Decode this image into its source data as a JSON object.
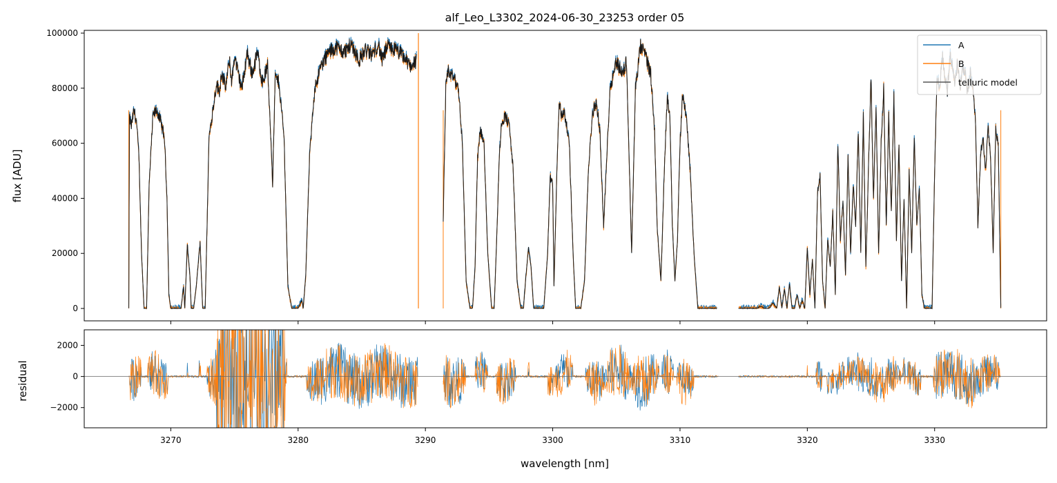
{
  "chart_data": [
    {
      "type": "line",
      "title": "alf_Leo_L3302_2024-06-30_23253  order 05",
      "xlabel": "",
      "ylabel": "flux [ADU]",
      "xlim": [
        3263.2,
        3338.8
      ],
      "ylim": [
        -4500,
        101000
      ],
      "yticks": [
        "0",
        "20000",
        "40000",
        "60000",
        "80000",
        "100000"
      ],
      "ytick_values": [
        0,
        20000,
        40000,
        60000,
        80000,
        100000
      ],
      "legend_position": "top-right",
      "legend": [
        "A",
        "B",
        "telluric model"
      ],
      "series_colors": [
        "#1f77b4",
        "#ff7f0e",
        "#555555"
      ],
      "segments": [
        {
          "x": [
            3266.7,
            3266.75,
            3266.9,
            3267.1,
            3267.3,
            3267.5,
            3267.7,
            3267.9,
            3268.1,
            3268.3,
            3268.6,
            3268.9,
            3269.2,
            3269.5,
            3269.7,
            3269.85,
            3270.0,
            3270.3,
            3270.6,
            3270.8,
            3271.0,
            3271.1,
            3271.3,
            3271.5,
            3271.6,
            3271.8,
            3272.0,
            3272.3,
            3272.5,
            3272.7,
            3272.85,
            3273.0,
            3273.3,
            3273.6,
            3273.8,
            3274.0,
            3274.3,
            3274.6,
            3274.8,
            3275.0,
            3275.3,
            3275.6,
            3276.0,
            3276.4,
            3276.8,
            3277.2,
            3277.6,
            3277.9,
            3278.0,
            3278.2,
            3278.5,
            3278.9,
            3279.2,
            3279.5,
            3279.8,
            3280.0,
            3280.3,
            3280.4,
            3280.6,
            3280.9,
            3281.3,
            3281.8,
            3282.4,
            3283.0,
            3283.6,
            3284.2,
            3284.8,
            3285.3,
            3285.8,
            3286.3,
            3286.6,
            3287.0,
            3287.6,
            3288.2,
            3288.8,
            3289.3
          ],
          "y": [
            0,
            70000,
            66000,
            72000,
            68000,
            55000,
            20000,
            0,
            0,
            45000,
            70000,
            72000,
            68000,
            62000,
            40000,
            5000,
            0,
            0,
            0,
            0,
            8000,
            0,
            23000,
            12000,
            0,
            0,
            8000,
            24000,
            0,
            0,
            30000,
            62000,
            72000,
            82000,
            78000,
            86000,
            80000,
            90000,
            82000,
            92000,
            85000,
            80000,
            93000,
            85000,
            93000,
            82000,
            88000,
            58000,
            45000,
            84000,
            82000,
            62000,
            8000,
            0,
            0,
            0,
            3000,
            0,
            12000,
            55000,
            80000,
            88000,
            93000,
            95000,
            93000,
            96000,
            90000,
            94000,
            92000,
            96000,
            90000,
            95000,
            94000,
            92000,
            88000,
            90000
          ]
        },
        {
          "x": [
            3291.4,
            3291.6,
            3291.8,
            3292.2,
            3292.6,
            3292.9,
            3293.2,
            3293.5,
            3293.7,
            3293.9,
            3294.1,
            3294.3,
            3294.6,
            3294.9,
            3295.2,
            3295.4,
            3295.6,
            3295.8,
            3296.0,
            3296.3,
            3296.6,
            3296.9,
            3297.2,
            3297.5,
            3297.7,
            3297.9,
            3298.1,
            3298.3,
            3298.5,
            3298.8,
            3299.0,
            3299.3,
            3299.6,
            3299.8,
            3300.0,
            3300.1,
            3300.3,
            3300.5,
            3300.7,
            3300.9,
            3301.3,
            3301.6,
            3301.8,
            3302.0,
            3302.2,
            3302.5,
            3302.8,
            3303.1,
            3303.4,
            3303.7,
            3304.0,
            3304.5,
            3305.0,
            3305.5,
            3305.8,
            3306.0,
            3306.2,
            3306.5,
            3306.9,
            3307.3,
            3307.7,
            3308.0,
            3308.2,
            3308.5,
            3308.8,
            3309.0,
            3309.2,
            3309.4,
            3309.6,
            3309.8,
            3310.0,
            3310.2,
            3310.5,
            3310.8,
            3311.1,
            3311.4,
            3311.7,
            3311.9,
            3312.1,
            3312.3,
            3312.6,
            3312.9
          ],
          "y": [
            32000,
            80000,
            86000,
            84000,
            80000,
            60000,
            10000,
            0,
            0,
            15000,
            55000,
            65000,
            60000,
            20000,
            0,
            0,
            25000,
            55000,
            68000,
            70000,
            66000,
            50000,
            10000,
            0,
            0,
            12000,
            22000,
            15000,
            0,
            0,
            0,
            0,
            20000,
            48000,
            45000,
            8000,
            45000,
            75000,
            70000,
            72000,
            60000,
            20000,
            0,
            0,
            0,
            10000,
            50000,
            70000,
            75000,
            65000,
            30000,
            80000,
            90000,
            85000,
            90000,
            55000,
            20000,
            80000,
            95000,
            92000,
            85000,
            65000,
            30000,
            10000,
            55000,
            77000,
            70000,
            30000,
            10000,
            25000,
            60000,
            78000,
            70000,
            50000,
            20000,
            0,
            0,
            0,
            0,
            0,
            0,
            0
          ]
        },
        {
          "x": [
            3314.6,
            3315.0,
            3315.5,
            3316.0,
            3316.4,
            3316.6,
            3317.0,
            3317.3,
            3317.6,
            3317.8,
            3318.0,
            3318.2,
            3318.4,
            3318.6,
            3318.8,
            3319.0,
            3319.2,
            3319.4,
            3319.6,
            3319.8,
            3320.0,
            3320.2,
            3320.4,
            3320.6,
            3320.8,
            3321.0,
            3321.2,
            3321.4,
            3321.6,
            3321.8,
            3322.0,
            3322.2,
            3322.4,
            3322.6,
            3322.8,
            3323.0,
            3323.2,
            3323.4,
            3323.6,
            3323.8,
            3324.0,
            3324.2,
            3324.4,
            3324.6,
            3324.8,
            3325.0,
            3325.2,
            3325.4,
            3325.6,
            3325.8,
            3326.0,
            3326.2,
            3326.4,
            3326.6,
            3326.8,
            3327.0,
            3327.2,
            3327.4,
            3327.6,
            3327.8,
            3328.0,
            3328.2,
            3328.4,
            3328.6,
            3328.8,
            3329.0,
            3329.2,
            3329.4,
            3329.6,
            3329.8,
            3330.0,
            3330.2,
            3330.4,
            3330.6,
            3330.8,
            3331.0,
            3331.2,
            3331.4,
            3331.6,
            3331.8,
            3332.0,
            3332.2,
            3332.4,
            3332.6,
            3332.8,
            3333.0,
            3333.2,
            3333.4,
            3333.6,
            3333.8,
            3334.0,
            3334.2,
            3334.4,
            3334.6,
            3334.8,
            3335.0,
            3335.2
          ],
          "y": [
            0,
            0,
            0,
            0,
            1000,
            0,
            0,
            2000,
            0,
            8000,
            0,
            7000,
            0,
            9000,
            0,
            0,
            5000,
            0,
            3000,
            0,
            22000,
            5000,
            18000,
            0,
            42000,
            48000,
            10000,
            0,
            25000,
            15000,
            35000,
            5000,
            60000,
            25000,
            40000,
            12000,
            55000,
            20000,
            45000,
            30000,
            65000,
            20000,
            70000,
            15000,
            50000,
            85000,
            40000,
            75000,
            20000,
            60000,
            80000,
            30000,
            70000,
            35000,
            78000,
            25000,
            60000,
            10000,
            40000,
            0,
            50000,
            20000,
            62000,
            30000,
            45000,
            5000,
            0,
            0,
            0,
            0,
            50000,
            85000,
            80000,
            92000,
            85000,
            78000,
            92000,
            88000,
            82000,
            90000,
            80000,
            88000,
            85000,
            78000,
            85000,
            80000,
            70000,
            30000,
            55000,
            62000,
            50000,
            65000,
            55000,
            20000,
            65000,
            60000,
            0
          ]
        }
      ],
      "spikes": [
        {
          "x": 3289.45,
          "y0": 100000,
          "y1": 0
        }
      ]
    },
    {
      "type": "line",
      "title": "",
      "xlabel": "wavelength [nm]",
      "ylabel": "residual",
      "xlim": [
        3263.2,
        3338.8
      ],
      "ylim": [
        -3300,
        3000
      ],
      "xticks": [
        "3270",
        "3280",
        "3290",
        "3300",
        "3310",
        "3320",
        "3330"
      ],
      "xtick_values": [
        3270,
        3280,
        3290,
        3300,
        3310,
        3320,
        3330
      ],
      "yticks": [
        "−2000",
        "0",
        "2000"
      ],
      "ytick_values": [
        -2000,
        0,
        2000
      ],
      "reference_line": 0,
      "series_colors": [
        "#1f77b4",
        "#ff7f0e"
      ],
      "segments": [
        {
          "x0": 3266.7,
          "x1": 3289.4
        },
        {
          "x0": 3291.4,
          "x1": 3313.0
        },
        {
          "x0": 3314.6,
          "x1": 3335.2
        }
      ]
    }
  ]
}
